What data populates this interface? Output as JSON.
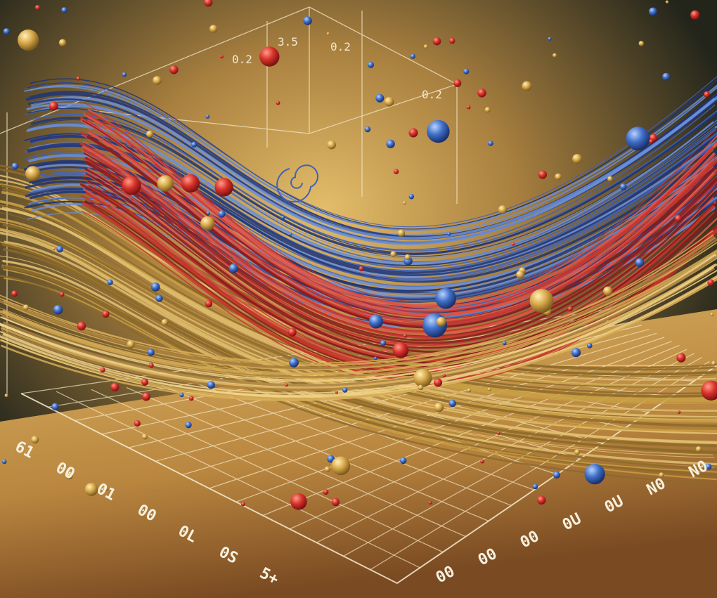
{
  "labels": {
    "top": [
      "0.2",
      "3.5",
      "0.2",
      "0.2"
    ],
    "left": [
      "61",
      "00",
      "01",
      "00",
      "0L",
      "0S",
      "5+"
    ],
    "right": [
      "N0",
      "N0",
      "0U",
      "0U",
      "00",
      "00",
      "00"
    ]
  }
}
